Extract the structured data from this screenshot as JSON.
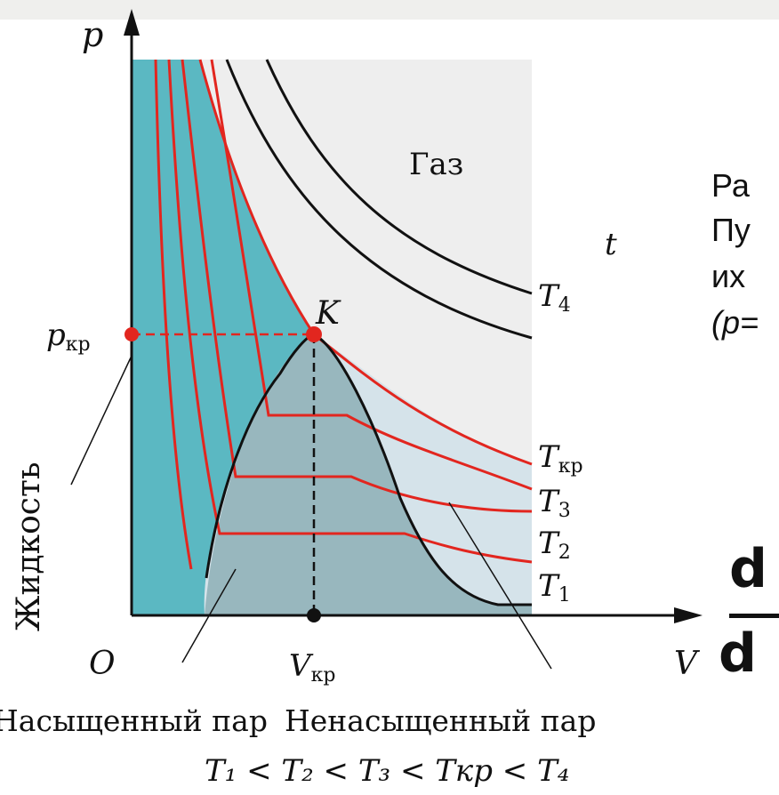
{
  "window": {
    "accent_bar": "#efefed"
  },
  "colors": {
    "liquid": "#5bb8c2",
    "gas": "#eeeeee",
    "unsaturated": "#d5e3ea",
    "saturated": "#98b7be",
    "isotherm_red": "#e2261f",
    "isotherm_black": "#111111",
    "critical_point": "#e2261f"
  },
  "diagram": {
    "axis_p": "p",
    "axis_v": "V",
    "origin": "O",
    "p_kr": "p",
    "p_kr_sub": "кр",
    "v_kr": "V",
    "v_kr_sub": "кр",
    "point_k": "K",
    "gas": "Газ",
    "t_label": "t",
    "liquid": "Жидкость",
    "saturated_vapor": "Насыщенный пар",
    "unsaturated_vapor": "Ненасыщенный пар",
    "isotherms": [
      {
        "main": "T",
        "sub": "4"
      },
      {
        "main": "T",
        "sub": "кр"
      },
      {
        "main": "T",
        "sub": "3"
      },
      {
        "main": "T",
        "sub": "2"
      },
      {
        "main": "T",
        "sub": "1"
      }
    ],
    "inequality": "T₁ < T₂ < T₃ < Tкр < T₄"
  },
  "side_text": {
    "line1": "Ра",
    "line2": "Пу",
    "line3": "их",
    "line4": "(p="
  },
  "formula": {
    "num": "d",
    "den": "d"
  }
}
